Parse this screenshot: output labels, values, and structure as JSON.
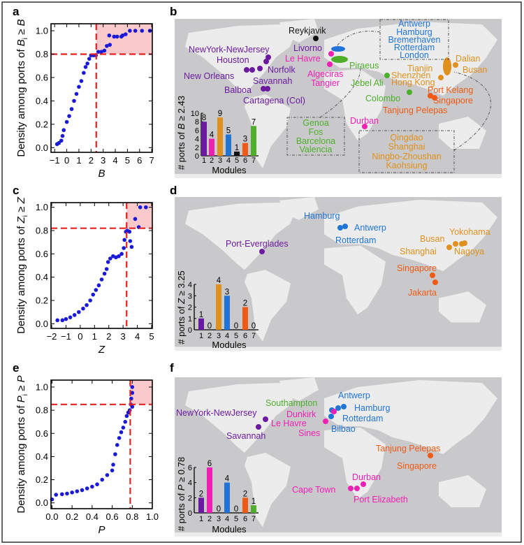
{
  "colors": {
    "module_1": "#6b1aa0",
    "module_2": "#f01fb4",
    "module_3": "#e0901c",
    "module_4": "#1f74d6",
    "module_5": "#111111",
    "module_6": "#f05a14",
    "module_7": "#4daf2a",
    "scatter": "#1a1ad6",
    "threshold": "#e8201e",
    "highlight": "#f9c9cc",
    "map_ocean": "#c9c9cb",
    "map_land": "#ececec"
  },
  "panel_labels": {
    "a": "a",
    "b": "b",
    "c": "c",
    "d": "d",
    "e": "e",
    "f": "f"
  },
  "chart_data": [
    {
      "id": "a",
      "type": "scatter",
      "xlabel": "B",
      "ylabel": {
        "prefix": "Density among ports of ",
        "var": "B",
        "sub": "i",
        "rel": " ≥ ",
        "var2": "B"
      },
      "xlim": [
        -1.3,
        7.05
      ],
      "ylim": [
        -0.04,
        1.06
      ],
      "xticks": [
        -1,
        0,
        1,
        2,
        3,
        4,
        5,
        6,
        7
      ],
      "xtick_labels": [
        "−1",
        "0",
        "1",
        "2",
        "3",
        "4",
        "5",
        "6",
        "7"
      ],
      "yticks": [
        0,
        0.2,
        0.4,
        0.6,
        0.8,
        1.0
      ],
      "ytick_labels": [
        "0.0",
        "0.2",
        "0.4",
        "0.6",
        "0.8",
        "1.0"
      ],
      "threshold": {
        "x": 2.43,
        "y": 0.8
      },
      "points": [
        [
          -0.8,
          0.03
        ],
        [
          -0.65,
          0.04
        ],
        [
          -0.45,
          0.06
        ],
        [
          -0.35,
          0.1
        ],
        [
          -0.25,
          0.15
        ],
        [
          0,
          0.22
        ],
        [
          0.2,
          0.27
        ],
        [
          0.4,
          0.33
        ],
        [
          0.6,
          0.4
        ],
        [
          0.8,
          0.46
        ],
        [
          1.0,
          0.52
        ],
        [
          1.2,
          0.57
        ],
        [
          1.4,
          0.64
        ],
        [
          1.55,
          0.69
        ],
        [
          1.7,
          0.72
        ],
        [
          1.85,
          0.76
        ],
        [
          2.0,
          0.79
        ],
        [
          2.2,
          0.79
        ],
        [
          2.4,
          0.79
        ],
        [
          2.6,
          0.82
        ],
        [
          2.85,
          0.82
        ],
        [
          3.1,
          0.83
        ],
        [
          3.3,
          0.87
        ],
        [
          3.55,
          0.88
        ],
        [
          3.5,
          0.96
        ],
        [
          3.9,
          0.95
        ],
        [
          4.15,
          0.95
        ],
        [
          4.5,
          0.95
        ],
        [
          4.6,
          0.96
        ],
        [
          4.85,
          0.97
        ],
        [
          5.2,
          1.0
        ],
        [
          5.65,
          1.0
        ],
        [
          6.2,
          1.0
        ],
        [
          6.85,
          1.0
        ]
      ]
    },
    {
      "id": "c",
      "type": "scatter",
      "xlabel": "Z",
      "ylabel": {
        "prefix": "Density among ports of ",
        "var": "Z",
        "sub": "i",
        "rel": " ≥ ",
        "var2": "Z"
      },
      "xlim": [
        -2.05,
        5.05
      ],
      "ylim": [
        -0.04,
        1.04
      ],
      "xticks": [
        -2,
        -1,
        0,
        1,
        2,
        3,
        4,
        5
      ],
      "xtick_labels": [
        "−2",
        "−1",
        "0",
        "1",
        "2",
        "3",
        "4",
        "5"
      ],
      "yticks": [
        0,
        0.2,
        0.4,
        0.6,
        0.8,
        1.0
      ],
      "ytick_labels": [
        "0.0",
        "0.2",
        "0.4",
        "0.6",
        "0.8",
        "1.0"
      ],
      "threshold": {
        "x": 3.25,
        "y": 0.82
      },
      "points": [
        [
          -1.6,
          0.03
        ],
        [
          -1.25,
          0.03
        ],
        [
          -1.0,
          0.04
        ],
        [
          -0.7,
          0.055
        ],
        [
          -0.4,
          0.075
        ],
        [
          -0.1,
          0.1
        ],
        [
          0.2,
          0.13
        ],
        [
          0.45,
          0.16
        ],
        [
          0.7,
          0.2
        ],
        [
          0.9,
          0.25
        ],
        [
          1.1,
          0.29
        ],
        [
          1.3,
          0.33
        ],
        [
          1.5,
          0.38
        ],
        [
          1.7,
          0.43
        ],
        [
          1.85,
          0.47
        ],
        [
          1.95,
          0.53
        ],
        [
          2.1,
          0.56
        ],
        [
          2.3,
          0.58
        ],
        [
          2.5,
          0.57
        ],
        [
          2.7,
          0.58
        ],
        [
          2.9,
          0.6
        ],
        [
          3.05,
          0.65
        ],
        [
          3.1,
          0.72
        ],
        [
          3.2,
          0.79
        ],
        [
          3.3,
          0.8
        ],
        [
          3.45,
          0.79
        ],
        [
          3.5,
          0.71
        ],
        [
          3.6,
          0.66
        ],
        [
          3.85,
          0.9
        ],
        [
          4.1,
          0.83
        ],
        [
          4.2,
          1.0
        ],
        [
          4.6,
          1.0
        ]
      ]
    },
    {
      "id": "e",
      "type": "scatter",
      "xlabel": "P",
      "ylabel": {
        "prefix": "Density among ports of ",
        "var": "P",
        "sub": "i",
        "rel": " ≥ ",
        "var2": "P"
      },
      "xlim": [
        -0.01,
        1.0
      ],
      "ylim": [
        -0.05,
        1.06
      ],
      "xticks": [
        0,
        0.2,
        0.4,
        0.6,
        0.8,
        1.0
      ],
      "xtick_labels": [
        "0.0",
        "0.2",
        "0.4",
        "0.6",
        "0.8",
        "1.0"
      ],
      "yticks": [
        0,
        0.2,
        0.4,
        0.6,
        0.8,
        1.0
      ],
      "ytick_labels": [
        "0.0",
        "0.2",
        "0.4",
        "0.6",
        "0.8",
        "1.0"
      ],
      "threshold": {
        "x": 0.78,
        "y": 0.85
      },
      "points": [
        [
          0.0,
          0.03
        ],
        [
          0.04,
          0.07
        ],
        [
          0.1,
          0.075
        ],
        [
          0.15,
          0.08
        ],
        [
          0.2,
          0.09
        ],
        [
          0.25,
          0.1
        ],
        [
          0.3,
          0.11
        ],
        [
          0.35,
          0.125
        ],
        [
          0.4,
          0.14
        ],
        [
          0.45,
          0.16
        ],
        [
          0.5,
          0.2
        ],
        [
          0.55,
          0.24
        ],
        [
          0.6,
          0.28
        ],
        [
          0.61,
          0.33
        ],
        [
          0.63,
          0.42
        ],
        [
          0.65,
          0.5
        ],
        [
          0.67,
          0.56
        ],
        [
          0.69,
          0.61
        ],
        [
          0.71,
          0.65
        ],
        [
          0.73,
          0.7
        ],
        [
          0.745,
          0.75
        ],
        [
          0.76,
          0.78
        ],
        [
          0.775,
          0.8
        ],
        [
          0.785,
          0.85
        ],
        [
          0.79,
          0.9
        ],
        [
          0.8,
          0.95
        ],
        [
          0.8,
          1.0
        ],
        [
          0.8,
          0.83
        ]
      ]
    },
    {
      "id": "b-inset",
      "type": "bar",
      "xlabel": "Modules",
      "ylabel": {
        "prefix": "# ports of ",
        "var": "B",
        "suffix": " ≥ 2.43"
      },
      "categories": [
        "1",
        "2",
        "3",
        "4",
        "5",
        "6",
        "7"
      ],
      "values": [
        8,
        4,
        9,
        5,
        1,
        3,
        7
      ],
      "ylim": [
        0,
        10
      ],
      "yticks": [
        "0",
        "2",
        "4",
        "6",
        "8",
        "10"
      ]
    },
    {
      "id": "d-inset",
      "type": "bar",
      "xlabel": "Modules",
      "ylabel": {
        "prefix": "# ports of ",
        "var": "Z",
        "suffix": " ≥ 3.25"
      },
      "categories": [
        "1",
        "2",
        "3",
        "4",
        "5",
        "6",
        "7"
      ],
      "values": [
        1,
        0,
        4,
        3,
        0,
        2,
        0
      ],
      "ylim": [
        0,
        4
      ],
      "yticks": [
        "0",
        "1",
        "2",
        "3",
        "4"
      ]
    },
    {
      "id": "f-inset",
      "type": "bar",
      "xlabel": "Modules",
      "ylabel": {
        "prefix": "# ports of ",
        "var": "P",
        "suffix": " ≥ 0.78"
      },
      "categories": [
        "1",
        "2",
        "3",
        "4",
        "5",
        "6",
        "7"
      ],
      "values": [
        2,
        6,
        0,
        4,
        0,
        2,
        1
      ],
      "ylim": [
        0,
        6
      ],
      "yticks": [
        "0",
        "2",
        "4",
        "6"
      ]
    }
  ],
  "map_b": {
    "labels": [
      "Reykjavik",
      "NewYork-NewJersey",
      "Livorno",
      "Houston",
      "Le Havre",
      "Norfolk",
      "New Orleans",
      "Algeciras",
      "Savannah",
      "Tangier",
      "Piraeus",
      "Jebel Ali",
      "Balboa",
      "Cartagena (Col)",
      "Colombo",
      "Tanjung Pelepas",
      "Port Kelang",
      "Singapore",
      "Tianjin",
      "Shenzhen",
      "Hong Kong",
      "Dalian",
      "Busan",
      "Durban"
    ],
    "box_north_europe": [
      "Antwerp",
      "Hamburg",
      "Bremerhaven",
      "Rotterdam",
      "London"
    ],
    "box_mediterranean": [
      "Genoa",
      "Fos",
      "Barcelona",
      "Valencia"
    ],
    "box_china": [
      "Qingdao",
      "Shanghai",
      "Ningbo-Zhoushan",
      "Kaohsiung"
    ]
  },
  "map_d": {
    "labels": [
      "Hamburg",
      "Antwerp",
      "Rotterdam",
      "Port-Everglades",
      "Yokohama",
      "Busan",
      "Shanghai",
      "Nagoya",
      "Singapore",
      "Jakarta"
    ]
  },
  "map_f": {
    "labels": [
      "Southampton",
      "Antwerp",
      "Hamburg",
      "NewYork-NewJersey",
      "Dunkirk",
      "Rotterdam",
      "Le Havre",
      "Bilbao",
      "Sines",
      "Savannah",
      "Tanjung Pelepas",
      "Singapore",
      "Durban",
      "Cape Town",
      "Port Elizabeth"
    ]
  }
}
